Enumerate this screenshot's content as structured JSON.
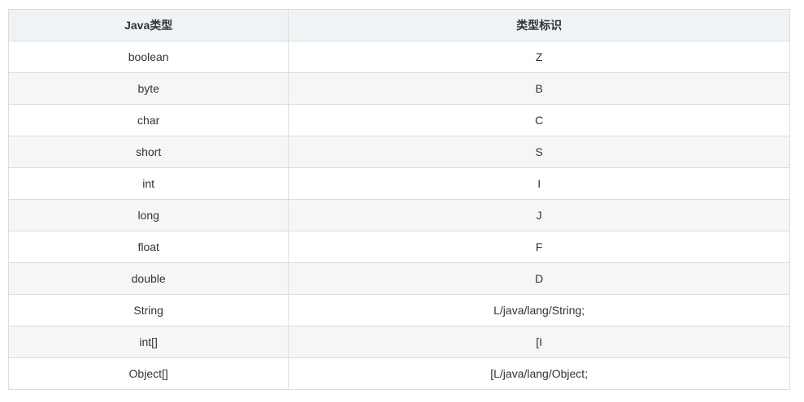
{
  "table": {
    "headers": [
      "Java类型",
      "类型标识"
    ],
    "rows": [
      [
        "boolean",
        "Z"
      ],
      [
        "byte",
        "B"
      ],
      [
        "char",
        "C"
      ],
      [
        "short",
        "S"
      ],
      [
        "int",
        "I"
      ],
      [
        "long",
        "J"
      ],
      [
        "float",
        "F"
      ],
      [
        "double",
        "D"
      ],
      [
        "String",
        "L/java/lang/String;"
      ],
      [
        "int[]",
        "[I"
      ],
      [
        "Object[]",
        "[L/java/lang/Object;"
      ]
    ]
  }
}
